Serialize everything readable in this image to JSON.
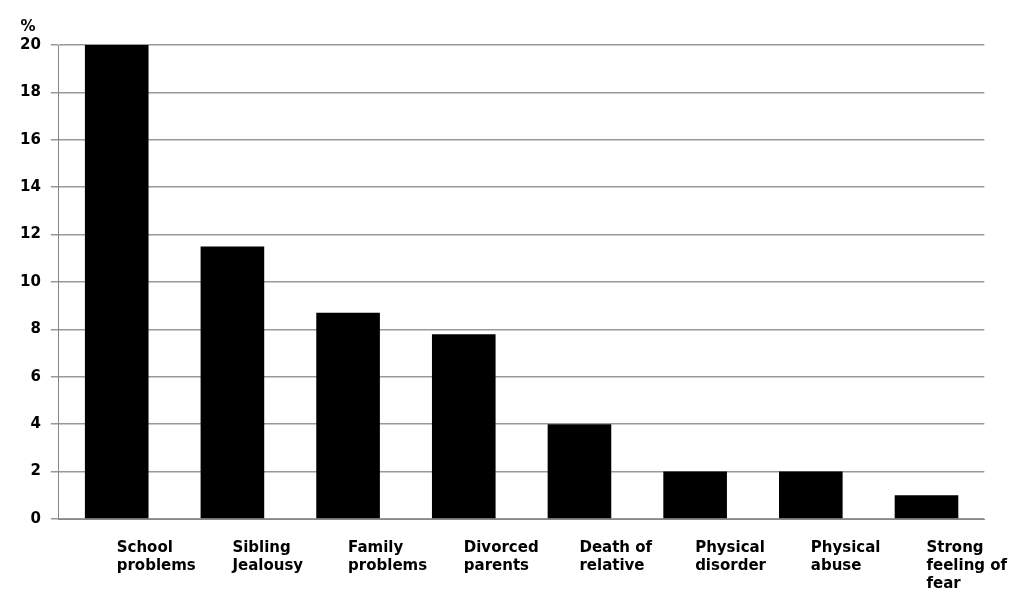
{
  "chart_data": {
    "type": "bar",
    "ylabel": "%",
    "categories": [
      "School problems",
      "Sibling Jealousy",
      "Family problems",
      "Divorced parents",
      "Death of relative",
      "Physical disorder",
      "Physical abuse",
      "Strong feeling of fear"
    ],
    "values": [
      20,
      11.5,
      8.7,
      7.8,
      4,
      2,
      2,
      1
    ],
    "color": "#000000",
    "ylim": [
      0,
      20
    ],
    "yticks": [
      0,
      2,
      4,
      6,
      8,
      10,
      12,
      14,
      16,
      18,
      20
    ],
    "grid": "y"
  }
}
